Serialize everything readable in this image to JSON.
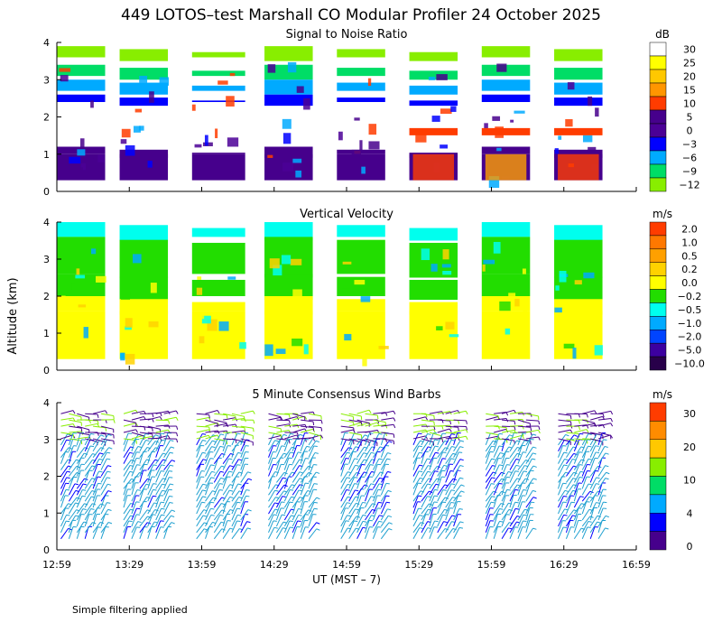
{
  "title": "449 LOTOS–test Marshall CO Modular Profiler 24 October 2025",
  "footer_note": "Simple filtering applied",
  "chart_data": {
    "type": "heatmap",
    "x": {
      "label": "UT  (MST – 7)",
      "ticks": [
        "12:59",
        "13:29",
        "13:59",
        "14:29",
        "14:59",
        "15:29",
        "15:59",
        "16:29",
        "16:59"
      ],
      "range_minutes": [
        0,
        240
      ]
    },
    "y": {
      "label": "Altitude (km)",
      "ticks": [
        "0",
        "1",
        "2",
        "3",
        "4"
      ],
      "range": [
        0,
        4
      ]
    },
    "profile_blocks_minutes": [
      [
        0,
        20
      ],
      [
        26,
        46
      ],
      [
        56,
        78
      ],
      [
        86,
        106
      ],
      [
        116,
        136
      ],
      [
        146,
        166
      ],
      [
        176,
        196
      ],
      [
        206,
        226
      ]
    ],
    "panels": [
      {
        "name": "snr",
        "title": "Signal to Noise Ratio",
        "unit": "dB",
        "colorbar": {
          "labels": [
            "30",
            "25",
            "20",
            "15",
            "10",
            "5",
            "0",
            "−3",
            "−6",
            "−9",
            "−12"
          ],
          "colors": [
            "#ffffff",
            "#ffff00",
            "#ffc800",
            "#ff9600",
            "#ff3c00",
            "#46008c",
            "#4b0096",
            "#0000ff",
            "#00aaff",
            "#00dd66",
            "#88ee00"
          ]
        },
        "altitude_levels_km": [
          3.6,
          3.1,
          2.7,
          2.4,
          1.0
        ],
        "level_colors": [
          "#88ee00",
          "#00dd66",
          "#00aaff",
          "#0000ff",
          "#46008c"
        ],
        "layer_altitudes_km": [
          3.9,
          3.4,
          3.0,
          2.6,
          1.2
        ]
      },
      {
        "name": "vertical-velocity",
        "title": "Vertical Velocity",
        "unit": "m/s",
        "colorbar": {
          "labels": [
            "2.0",
            "1.0",
            "0.5",
            "0.2",
            "0.0",
            "−0.2",
            "−0.5",
            "−1.0",
            "−2.0",
            "−5.0",
            "−10.0"
          ],
          "colors": [
            "#ff3c00",
            "#ff7800",
            "#ffa000",
            "#ffd200",
            "#ffff00",
            "#22dd00",
            "#00ffee",
            "#00aaff",
            "#0044ff",
            "#3c00a0",
            "#28004a"
          ]
        },
        "altitude_levels_km": [
          3.6,
          2.6,
          2.0,
          1.6
        ],
        "level_colors": [
          "#00ffee",
          "#22dd00",
          "#22dd00",
          "#ffff00"
        ],
        "layer_altitudes_km": [
          4.0,
          3.6,
          2.6,
          2.0
        ]
      },
      {
        "name": "wind-barbs",
        "title": "5 Minute Consensus Wind Barbs",
        "unit": "m/s",
        "colorbar": {
          "labels": [
            "30",
            "20",
            "10",
            "4",
            "0"
          ],
          "colors": [
            "#ff3c00",
            "#ff8c00",
            "#ffc800",
            "#88ee00",
            "#00dd66",
            "#00aaff",
            "#0000ff",
            "#46008c"
          ]
        },
        "barb_altitude_range_km": [
          0.3,
          3.8
        ],
        "barb_colors": [
          "#1fa0d0",
          "#46008c",
          "#88ee00",
          "#0000ff"
        ]
      }
    ]
  }
}
